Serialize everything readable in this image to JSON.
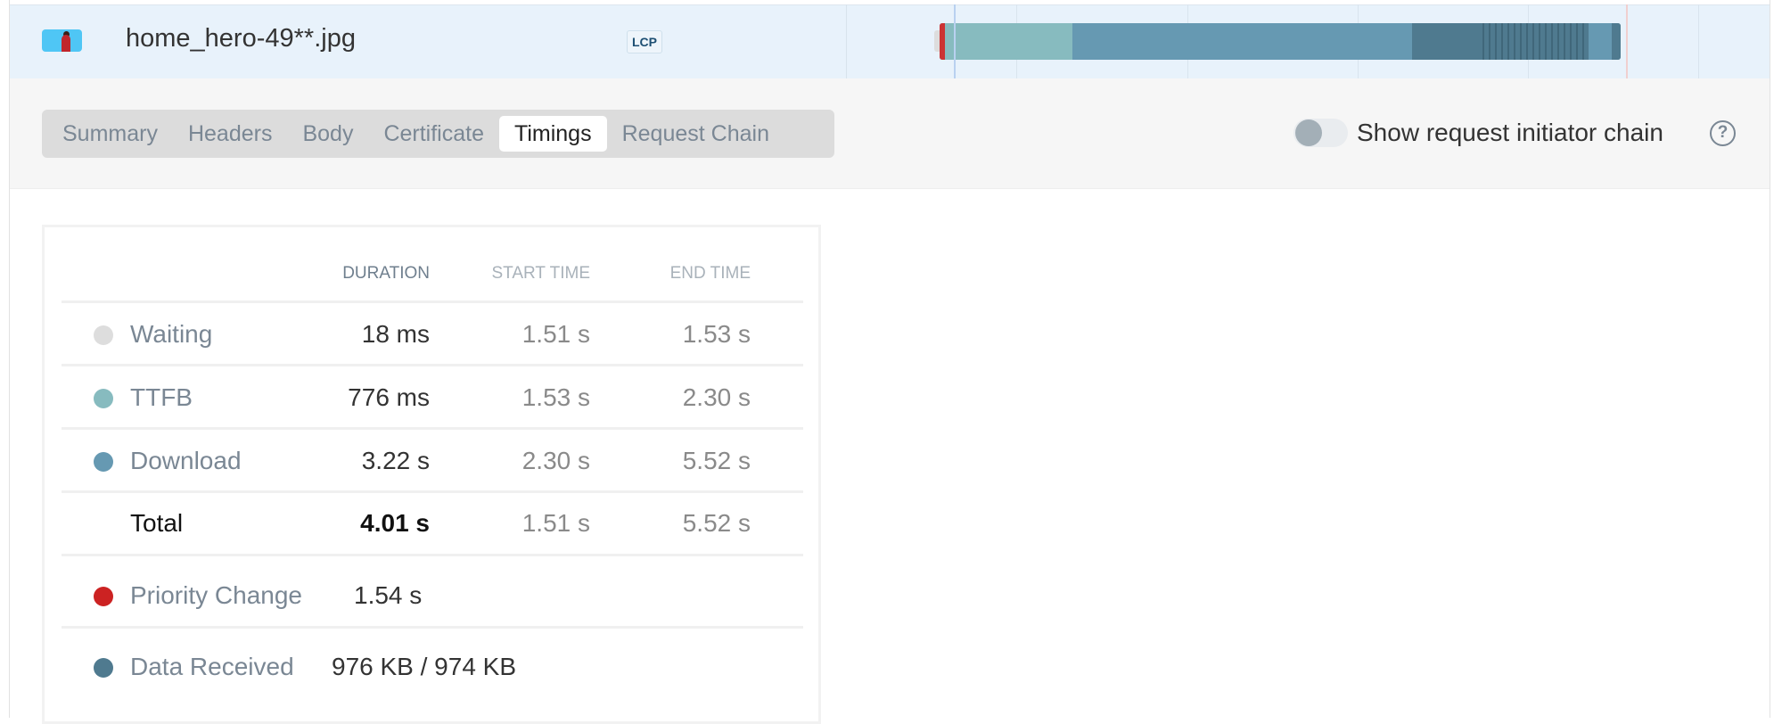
{
  "request": {
    "filename": "home_hero-49**.jpg",
    "badge": "LCP"
  },
  "waterfall_colors": {
    "waiting": "#dddddd",
    "ttfb": "#87bbbf",
    "download": "#6699b2",
    "received": "#4f7a8f",
    "priority": "#cc3333"
  },
  "tabs": [
    {
      "label": "Summary",
      "active": false
    },
    {
      "label": "Headers",
      "active": false
    },
    {
      "label": "Body",
      "active": false
    },
    {
      "label": "Certificate",
      "active": false
    },
    {
      "label": "Timings",
      "active": true
    },
    {
      "label": "Request Chain",
      "active": false
    }
  ],
  "toggle": {
    "label": "Show request initiator chain",
    "on": false
  },
  "table": {
    "headers": {
      "duration": "DURATION",
      "start": "START TIME",
      "end": "END TIME"
    },
    "rows": [
      {
        "label": "Waiting",
        "duration": "18 ms",
        "start": "1.51 s",
        "end": "1.53 s",
        "color": "#dddddd"
      },
      {
        "label": "TTFB",
        "duration": "776 ms",
        "start": "1.53 s",
        "end": "2.30 s",
        "color": "#87bbbf"
      },
      {
        "label": "Download",
        "duration": "3.22 s",
        "start": "2.30 s",
        "end": "5.52 s",
        "color": "#6699b2"
      }
    ],
    "total": {
      "label": "Total",
      "duration": "4.01 s",
      "start": "1.51 s",
      "end": "5.52 s"
    },
    "priority": {
      "label": "Priority Change",
      "value": "1.54 s",
      "color": "#cc2222"
    },
    "received": {
      "label": "Data Received",
      "value": "976 KB / 974 KB",
      "color": "#4f7a8f"
    }
  }
}
